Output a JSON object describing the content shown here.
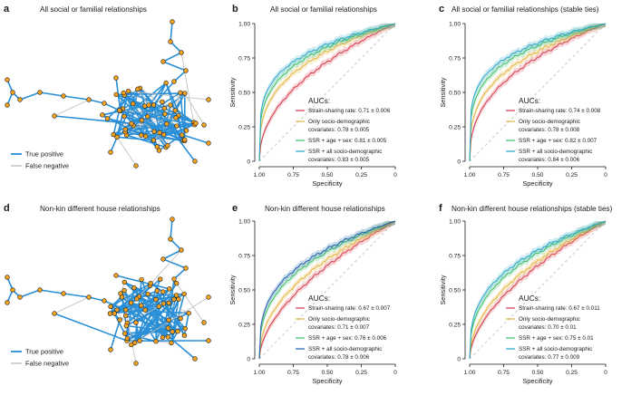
{
  "figure": {
    "colors": {
      "strain": "#d63a4a",
      "socio": "#e3b33b",
      "ssr_age_sex": "#3fbf6a",
      "ssr_all": "#2aa6c8",
      "ssr_all_dark": "#1f5fae",
      "edge_tp": "#2a8fd6",
      "edge_fn": "#bdbdbd",
      "node": "#f2a11f",
      "diag": "#c8c8c8"
    },
    "panels": [
      {
        "letter": "a",
        "title": "All social or familial relationships",
        "type": "network",
        "legend": [
          "True positive",
          "False negative"
        ]
      },
      {
        "letter": "d",
        "title": "Non-kin different house relationships",
        "type": "network",
        "legend": [
          "True positive",
          "False negative"
        ]
      }
    ]
  },
  "chart_data": [
    {
      "id": "b",
      "letter": "b",
      "type": "line",
      "title": "All social or familial relationships",
      "xlabel": "Specificity",
      "ylabel": "Sensitivity",
      "xlim": [
        1.0,
        0.0
      ],
      "ylim": [
        0.0,
        1.0
      ],
      "xticks": [
        "1.00",
        "0.75",
        "0.50",
        "0.25",
        "0"
      ],
      "yticks": [
        "0",
        "0.25",
        "0.50",
        "0.75",
        "1.00"
      ],
      "auc_title": "AUCs:",
      "series": [
        {
          "name": "Strain-sharing rate: 0.71 ± 0.006",
          "lines": [
            "Strain-sharing rate: 0.71 ± 0.006"
          ],
          "auc": 0.71,
          "color": "strain"
        },
        {
          "name": "Only socio-demographic covariates: 0.78 ± 0.005",
          "lines": [
            "Only socio-demographic",
            "covariates: 0.78 ± 0.005"
          ],
          "auc": 0.78,
          "color": "socio"
        },
        {
          "name": "SSR + age + sex: 0.81 ± 0.005",
          "lines": [
            "SSR + age + sex: 0.81 ± 0.005"
          ],
          "auc": 0.81,
          "color": "ssr_age_sex"
        },
        {
          "name": "SSR + all socio-demographic covariates: 0.83 ± 0.005",
          "lines": [
            "SSR + all socio-demographic",
            "covariates: 0.83 ± 0.005"
          ],
          "auc": 0.83,
          "color": "ssr_all"
        }
      ]
    },
    {
      "id": "c",
      "letter": "c",
      "type": "line",
      "title": "All social or familial relationships (stable ties)",
      "xlabel": "Specificity",
      "ylabel": "Sensitivity",
      "xlim": [
        1.0,
        0.0
      ],
      "ylim": [
        0.0,
        1.0
      ],
      "xticks": [
        "1.00",
        "0.75",
        "0.50",
        "0.25",
        "0"
      ],
      "yticks": [
        "0",
        "0.25",
        "0.50",
        "0.75",
        "1.00"
      ],
      "auc_title": "AUCs:",
      "series": [
        {
          "name": "Strain-sharing rate: 0.74 ± 0.008",
          "lines": [
            "Strain-sharing rate: 0.74 ± 0.008"
          ],
          "auc": 0.74,
          "color": "strain"
        },
        {
          "name": "Only socio-demographic covariates: 0.78 ± 0.008",
          "lines": [
            "Only socio-demographic",
            "covariates: 0.78 ± 0.008"
          ],
          "auc": 0.78,
          "color": "socio"
        },
        {
          "name": "SSR + age + sex: 0.82 ± 0.007",
          "lines": [
            "SSR + age + sex: 0.82 ± 0.007"
          ],
          "auc": 0.82,
          "color": "ssr_age_sex"
        },
        {
          "name": "SSR + all socio-demographic covariates: 0.84 ± 0.006",
          "lines": [
            "SSR + all socio-demographic",
            "covariates: 0.84 ± 0.006"
          ],
          "auc": 0.84,
          "color": "ssr_all"
        }
      ]
    },
    {
      "id": "e",
      "letter": "e",
      "type": "line",
      "title": "Non-kin different house relationships",
      "xlabel": "Specificity",
      "ylabel": "Sensitivity",
      "xlim": [
        1.0,
        0.0
      ],
      "ylim": [
        0.0,
        1.0
      ],
      "xticks": [
        "1.00",
        "0.75",
        "0.50",
        "0.25",
        "0"
      ],
      "yticks": [
        "0",
        "0.25",
        "0.50",
        "0.75",
        "1.00"
      ],
      "auc_title": "AUCs:",
      "series": [
        {
          "name": "Strain-sharing rate: 0.67 ± 0.007",
          "lines": [
            "Strain-sharing rate: 0.67 ± 0.007"
          ],
          "auc": 0.67,
          "color": "strain"
        },
        {
          "name": "Only socio-demographic covariates: 0.71 ± 0.007",
          "lines": [
            "Only socio-demographic",
            "covariates: 0.71 ± 0.007"
          ],
          "auc": 0.71,
          "color": "socio"
        },
        {
          "name": "SSR + age + sex: 0.76 ± 0.006",
          "lines": [
            "SSR + age + sex: 0.76 ± 0.006"
          ],
          "auc": 0.76,
          "color": "ssr_age_sex"
        },
        {
          "name": "SSR + all socio-demographic covariates: 0.78 ± 0.006",
          "lines": [
            "SSR + all socio-demographic",
            "covariates: 0.78 ± 0.006"
          ],
          "auc": 0.78,
          "color": "ssr_all_dark"
        }
      ]
    },
    {
      "id": "f",
      "letter": "f",
      "type": "line",
      "title": "Non-kin different house relationships (stable ties)",
      "xlabel": "Specificity",
      "ylabel": "Sensitivity",
      "xlim": [
        1.0,
        0.0
      ],
      "ylim": [
        0.0,
        1.0
      ],
      "xticks": [
        "1.00",
        "0.75",
        "0.50",
        "0.25",
        "0"
      ],
      "yticks": [
        "0",
        "0.25",
        "0.50",
        "0.75",
        "1.00"
      ],
      "auc_title": "AUCs:",
      "series": [
        {
          "name": "Strain-sharing rate: 0.67 ± 0.011",
          "lines": [
            "Strain-sharing rate: 0.67 ± 0.011"
          ],
          "auc": 0.67,
          "color": "strain"
        },
        {
          "name": "Only socio-demographic covariates: 0.70 ± 0.01",
          "lines": [
            "Only socio-demographic",
            "covariates: 0.70 ± 0.01"
          ],
          "auc": 0.7,
          "color": "socio"
        },
        {
          "name": "SSR + age + sex: 0.75 ± 0.01",
          "lines": [
            "SSR + age + sex: 0.75 ± 0.01"
          ],
          "auc": 0.75,
          "color": "ssr_age_sex"
        },
        {
          "name": "SSR + all socio-demographic covariates: 0.77 ± 0.009",
          "lines": [
            "SSR + all socio-demographic",
            "covariates: 0.77 ± 0.009"
          ],
          "auc": 0.77,
          "color": "ssr_all"
        }
      ]
    }
  ]
}
